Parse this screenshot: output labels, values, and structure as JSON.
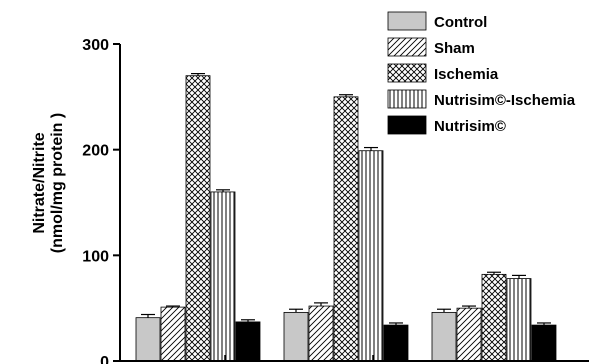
{
  "chart_data": {
    "type": "bar",
    "title": "",
    "xlabel": "",
    "ylabel_line1": "Nitrate/Nitrite",
    "ylabel_line2": "(nmol/mg protein )",
    "ylim": [
      0,
      300
    ],
    "yticks": [
      "0",
      "100",
      "200",
      "300"
    ],
    "categories": [
      "",
      "",
      ""
    ],
    "legend_position": "top-right",
    "series": [
      {
        "name": "Control",
        "pattern": "solid-gray",
        "values": [
          41,
          46,
          46
        ],
        "errors": [
          3,
          3,
          3
        ]
      },
      {
        "name": "Sham",
        "pattern": "diagonal",
        "values": [
          51,
          52,
          50
        ],
        "errors": [
          1,
          3,
          2
        ]
      },
      {
        "name": "Ischemia",
        "pattern": "crosshatch",
        "values": [
          270,
          250,
          82
        ],
        "errors": [
          2,
          2,
          2
        ]
      },
      {
        "name": "Nutrisim©-Ischemia",
        "pattern": "vertical",
        "values": [
          160,
          199,
          78
        ],
        "errors": [
          2,
          3,
          3
        ]
      },
      {
        "name": "Nutrisim©",
        "pattern": "solid-black",
        "values": [
          37,
          34,
          34
        ],
        "errors": [
          2,
          2,
          2
        ]
      }
    ]
  }
}
